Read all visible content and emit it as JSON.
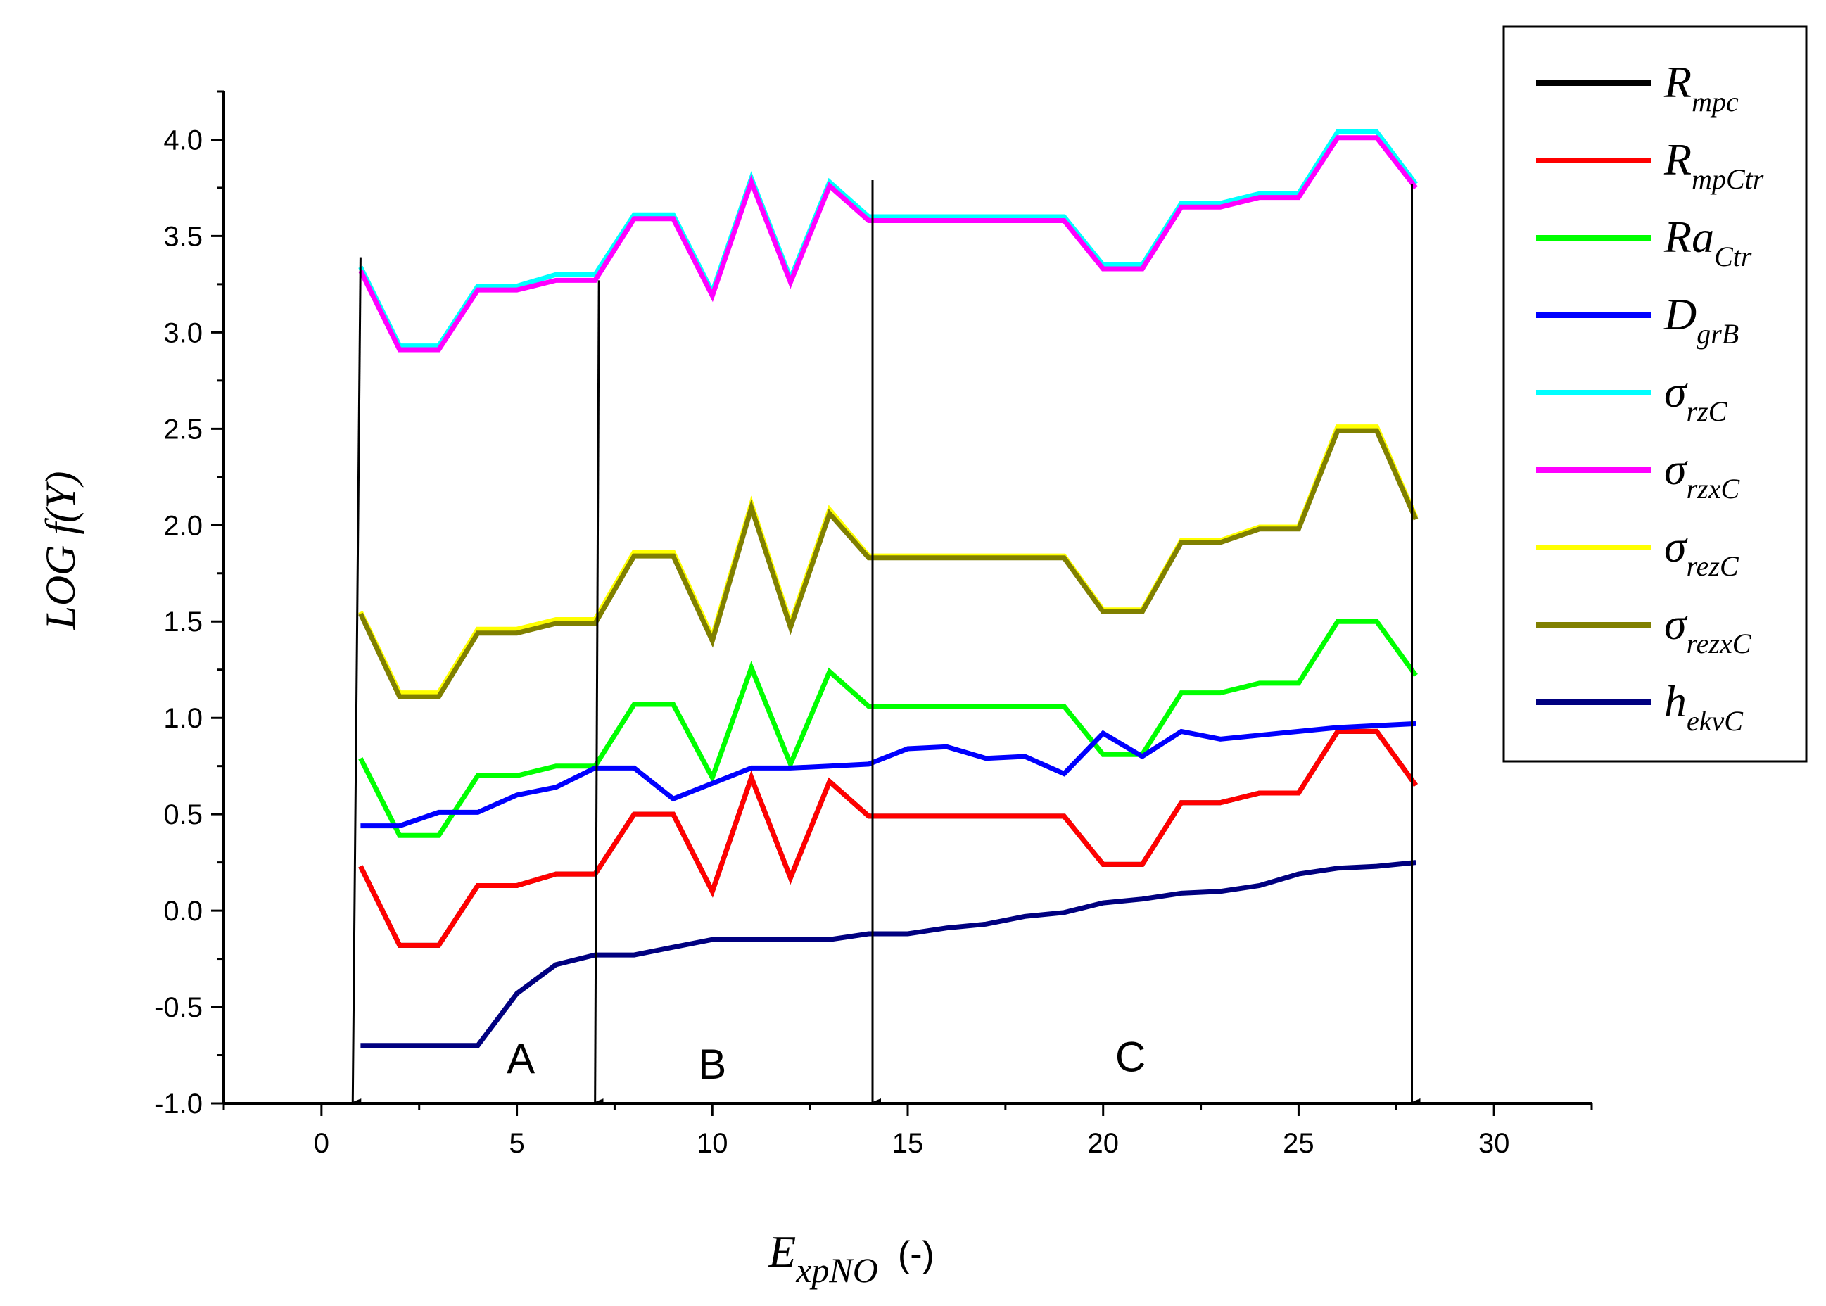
{
  "chart_data": {
    "type": "line",
    "title": "",
    "xlabel": {
      "main": "E",
      "sub": "xpNO",
      "suffix": "(-)"
    },
    "ylabel": "LOG f(Y)",
    "xlim": [
      -2.5,
      32.5
    ],
    "ylim": [
      -1.0,
      4.25
    ],
    "xticks": [
      0,
      5,
      10,
      15,
      20,
      25,
      30
    ],
    "xtick_labels": [
      "0",
      "5",
      "10",
      "15",
      "20",
      "25",
      "30"
    ],
    "yticks": [
      -1.0,
      -0.5,
      0.0,
      0.5,
      1.0,
      1.5,
      2.0,
      2.5,
      3.0,
      3.5,
      4.0
    ],
    "ytick_labels": [
      "-1.0",
      "-0.5",
      "0.0",
      "0.5",
      "1.0",
      "1.5",
      "2.0",
      "2.5",
      "3.0",
      "3.5",
      "4.0"
    ],
    "grid": false,
    "legend_position": "right",
    "x": [
      1,
      2,
      3,
      4,
      5,
      6,
      7,
      8,
      9,
      10,
      11,
      12,
      13,
      14,
      15,
      16,
      17,
      18,
      19,
      20,
      21,
      22,
      23,
      24,
      25,
      26,
      27,
      28
    ],
    "series": [
      {
        "name": "R",
        "sub": "mpc",
        "color": "#000000",
        "values": [
          0.23,
          -0.18,
          -0.18,
          0.13,
          0.13,
          0.19,
          0.19,
          0.5,
          0.5,
          0.1,
          0.69,
          0.17,
          0.67,
          0.49,
          0.49,
          0.49,
          0.49,
          0.49,
          0.49,
          0.24,
          0.24,
          0.56,
          0.56,
          0.61,
          0.61,
          0.93,
          0.93,
          0.65
        ]
      },
      {
        "name": "R",
        "sub": "mpCtr",
        "color": "#ff0000",
        "values": [
          0.23,
          -0.18,
          -0.18,
          0.13,
          0.13,
          0.19,
          0.19,
          0.5,
          0.5,
          0.1,
          0.69,
          0.17,
          0.67,
          0.49,
          0.49,
          0.49,
          0.49,
          0.49,
          0.49,
          0.24,
          0.24,
          0.56,
          0.56,
          0.61,
          0.61,
          0.93,
          0.93,
          0.65
        ]
      },
      {
        "name": "Ra",
        "sub": "Ctr",
        "color": "#00ff00",
        "values": [
          0.79,
          0.39,
          0.39,
          0.7,
          0.7,
          0.75,
          0.75,
          1.07,
          1.07,
          0.69,
          1.26,
          0.76,
          1.24,
          1.06,
          1.06,
          1.06,
          1.06,
          1.06,
          1.06,
          0.81,
          0.81,
          1.13,
          1.13,
          1.18,
          1.18,
          1.5,
          1.5,
          1.22
        ]
      },
      {
        "name": "D",
        "sub": "grB",
        "color": "#0000ff",
        "values": [
          0.44,
          0.44,
          0.51,
          0.51,
          0.6,
          0.64,
          0.74,
          0.74,
          0.58,
          0.66,
          0.74,
          0.74,
          0.75,
          0.76,
          0.84,
          0.85,
          0.79,
          0.8,
          0.71,
          0.92,
          0.8,
          0.93,
          0.89,
          0.91,
          0.93,
          0.95,
          0.96,
          0.97
        ]
      },
      {
        "name": "σ",
        "sub": "rzC",
        "color": "#00ffff",
        "values": [
          3.34,
          2.93,
          2.93,
          3.24,
          3.24,
          3.3,
          3.3,
          3.61,
          3.61,
          3.21,
          3.8,
          3.28,
          3.78,
          3.6,
          3.6,
          3.6,
          3.6,
          3.6,
          3.6,
          3.35,
          3.35,
          3.67,
          3.67,
          3.72,
          3.72,
          4.04,
          4.04,
          3.77
        ]
      },
      {
        "name": "σ",
        "sub": "rzxC",
        "color": "#ff00ff",
        "values": [
          3.32,
          2.91,
          2.91,
          3.22,
          3.22,
          3.27,
          3.27,
          3.59,
          3.59,
          3.19,
          3.78,
          3.26,
          3.76,
          3.58,
          3.58,
          3.58,
          3.58,
          3.58,
          3.58,
          3.33,
          3.33,
          3.65,
          3.65,
          3.7,
          3.7,
          4.01,
          4.01,
          3.75
        ]
      },
      {
        "name": "σ",
        "sub": "rezC",
        "color": "#ffff00",
        "values": [
          1.55,
          1.13,
          1.13,
          1.46,
          1.46,
          1.51,
          1.51,
          1.86,
          1.86,
          1.42,
          2.11,
          1.49,
          2.08,
          1.84,
          1.84,
          1.84,
          1.84,
          1.84,
          1.84,
          1.56,
          1.56,
          1.92,
          1.92,
          1.99,
          1.99,
          2.51,
          2.51,
          2.04
        ]
      },
      {
        "name": "σ",
        "sub": "rezxC",
        "color": "#808000",
        "values": [
          1.54,
          1.11,
          1.11,
          1.44,
          1.44,
          1.49,
          1.49,
          1.84,
          1.84,
          1.4,
          2.09,
          1.47,
          2.06,
          1.83,
          1.83,
          1.83,
          1.83,
          1.83,
          1.83,
          1.55,
          1.55,
          1.91,
          1.91,
          1.98,
          1.98,
          2.49,
          2.49,
          2.03
        ]
      },
      {
        "name": "h",
        "sub": "ekvC",
        "color": "#000080",
        "values": [
          -0.7,
          -0.7,
          -0.7,
          -0.7,
          -0.43,
          -0.28,
          -0.23,
          -0.23,
          -0.19,
          -0.15,
          -0.15,
          -0.15,
          -0.15,
          -0.12,
          -0.12,
          -0.09,
          -0.07,
          -0.03,
          -0.01,
          0.04,
          0.06,
          0.09,
          0.1,
          0.13,
          0.19,
          0.22,
          0.23,
          0.25
        ]
      }
    ],
    "annotations": {
      "arrows": [
        {
          "x_top": 1.0,
          "y_top": 3.39,
          "x_bottom": 0.8,
          "y_bottom": -1.0
        },
        {
          "x_top": 7.1,
          "y_top": 3.27,
          "x_bottom": 7.0,
          "y_bottom": -1.0
        },
        {
          "x_top": 14.1,
          "y_top": 3.79,
          "x_bottom": 14.1,
          "y_bottom": -1.0
        },
        {
          "x_top": 27.9,
          "y_top": 3.77,
          "x_bottom": 27.9,
          "y_bottom": -1.0
        }
      ],
      "regions": [
        {
          "label": "A",
          "x": 5.1,
          "y": -0.77
        },
        {
          "label": "B",
          "x": 10.0,
          "y": -0.8
        },
        {
          "label": "C",
          "x": 20.7,
          "y": -0.76
        }
      ]
    }
  }
}
